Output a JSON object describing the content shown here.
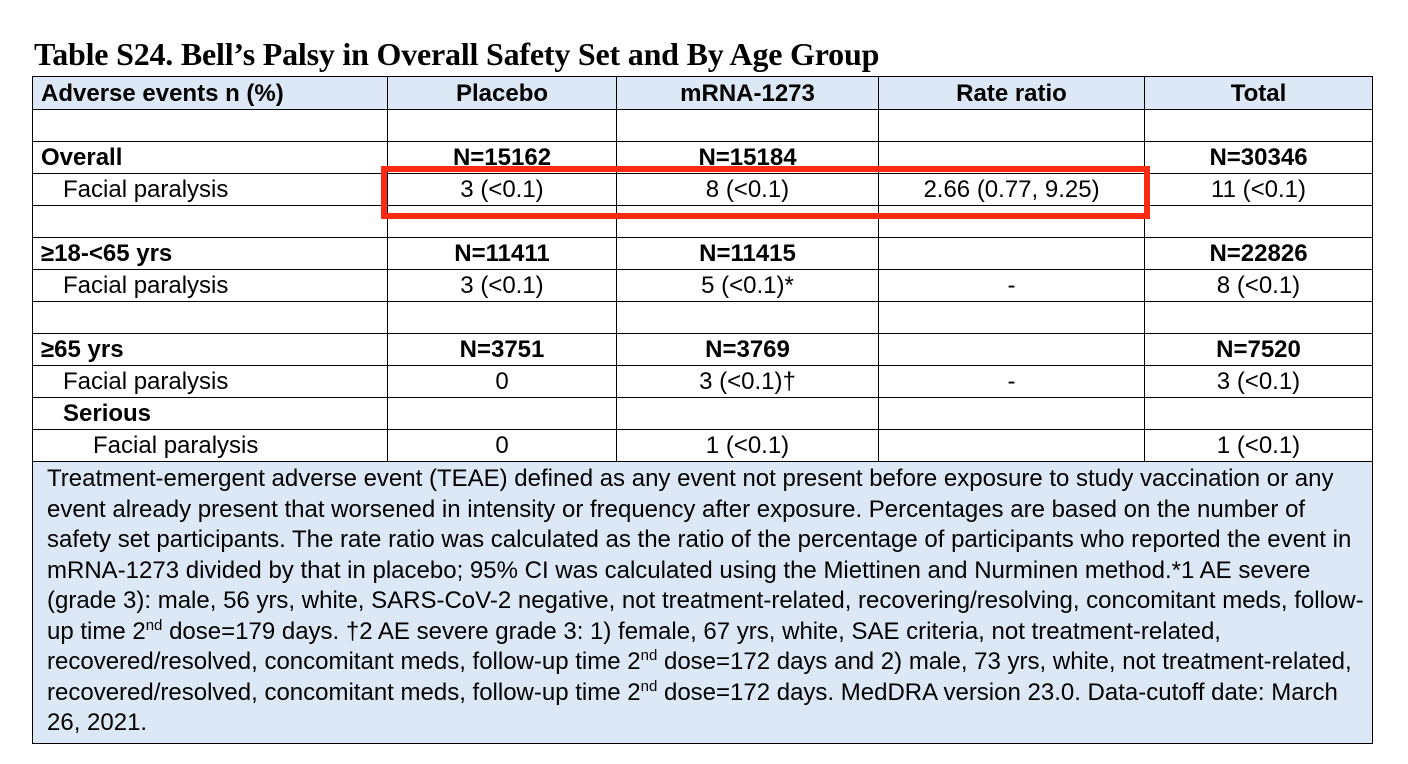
{
  "title": "Table S24. Bell’s Palsy in Overall Safety Set and By Age Group",
  "columns": [
    "Adverse events n (%)",
    "Placebo",
    "mRNA-1273",
    "Rate ratio",
    "Total"
  ],
  "groups": {
    "overall": {
      "label": "Overall",
      "placebo_n": "N=15162",
      "mrna_n": "N=15184",
      "ratio_n": "",
      "total_n": "N=30346",
      "row": {
        "label": "Facial paralysis",
        "placebo": "3 (<0.1)",
        "mrna": "8 (<0.1)",
        "ratio": "2.66 (0.77, 9.25)",
        "total": "11 (<0.1)"
      }
    },
    "age_18_65": {
      "label": "≥18-<65 yrs",
      "placebo_n": "N=11411",
      "mrna_n": "N=11415",
      "ratio_n": "",
      "total_n": "N=22826",
      "row": {
        "label": "Facial paralysis",
        "placebo": "3 (<0.1)",
        "mrna": "5 (<0.1)*",
        "ratio": "-",
        "total": "8 (<0.1)"
      }
    },
    "age_65": {
      "label": "≥65 yrs",
      "placebo_n": "N=3751",
      "mrna_n": "N=3769",
      "ratio_n": "",
      "total_n": "N=7520",
      "row": {
        "label": "Facial paralysis",
        "placebo": "0",
        "mrna": "3 (<0.1)†",
        "ratio": "-",
        "total": "3 (<0.1)"
      },
      "serious_label": "Serious",
      "serious_row": {
        "label": "Facial paralysis",
        "placebo": "0",
        "mrna": "1 (<0.1)",
        "ratio": "",
        "total": "1 (<0.1)"
      }
    }
  },
  "footnote": {
    "p1": "Treatment-emergent adverse event (TEAE) defined as any event not present before exposure to study vaccination or any event already present that worsened in intensity or frequency after exposure. Percentages are based on the number of safety set participants. The rate ratio was calculated as the ratio of the percentage of participants who reported the event in mRNA-1273 divided by that in placebo; 95% CI was calculated using the Miettinen and Nurminen method.*1 AE severe (grade 3): male, 56 yrs, white, SARS-CoV-2 negative, not treatment-related, recovering/resolving, concomitant meds, follow-up time 2",
    "sup1": "nd",
    "p2": " dose=179 days.  †2 AE severe grade 3: 1) female, 67 yrs, white, SAE criteria, not treatment-related, recovered/resolved, concomitant meds, follow-up time 2",
    "sup2": "nd",
    "p3": " dose=172 days and 2) male, 73 yrs, white, not treatment-related, recovered/resolved, concomitant meds, follow-up time 2",
    "sup3": "nd",
    "p4": " dose=172 days. MedDRA version 23.0. Data-cutoff date: March 26, 2021."
  },
  "highlight_color": "#ff2a12"
}
